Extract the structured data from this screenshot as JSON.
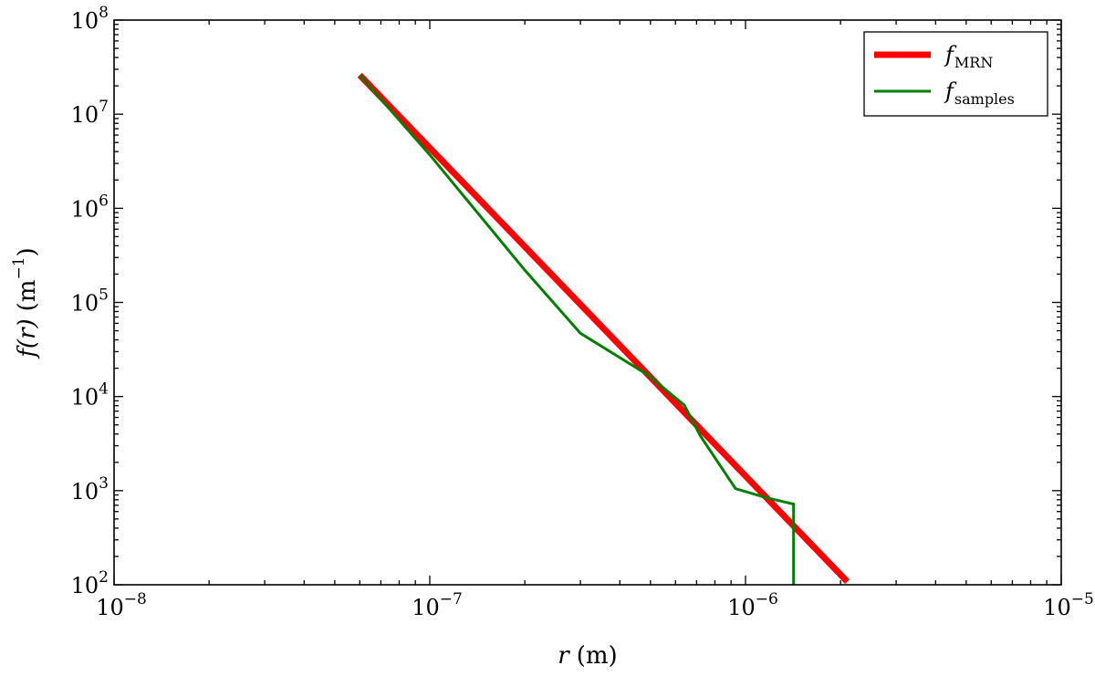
{
  "chart_data": {
    "type": "line",
    "xscale": "log",
    "yscale": "log",
    "xlim": [
      1e-08,
      1e-05
    ],
    "ylim": [
      100,
      100000000
    ],
    "xlabel": {
      "var": "r",
      "unit": "(m)"
    },
    "ylabel": {
      "var": "f(r)",
      "unit": "(m",
      "unit_exp": "−1",
      "unit_close": ")"
    },
    "x_tick_labels": [
      {
        "value": 1e-08,
        "base": "10",
        "exp": "−8"
      },
      {
        "value": 1e-07,
        "base": "10",
        "exp": "−7"
      },
      {
        "value": 1e-06,
        "base": "10",
        "exp": "−6"
      },
      {
        "value": 1e-05,
        "base": "10",
        "exp": "−5"
      }
    ],
    "y_tick_labels": [
      {
        "value": 100,
        "base": "10",
        "exp": "2"
      },
      {
        "value": 1000,
        "base": "10",
        "exp": "3"
      },
      {
        "value": 10000,
        "base": "10",
        "exp": "4"
      },
      {
        "value": 100000,
        "base": "10",
        "exp": "5"
      },
      {
        "value": 1000000,
        "base": "10",
        "exp": "6"
      },
      {
        "value": 10000000,
        "base": "10",
        "exp": "7"
      },
      {
        "value": 100000000,
        "base": "10",
        "exp": "8"
      }
    ],
    "grid": false,
    "legend_position": "top-right",
    "series": [
      {
        "name": "f",
        "name_sub": "MRN",
        "color": "#ff0000",
        "x": [
          6e-08,
          2.1e-06
        ],
        "y": [
          26000000,
          108
        ]
      },
      {
        "name": "f",
        "name_sub": "samples",
        "color": "#008000",
        "x": [
          6e-08,
          1e-07,
          2e-07,
          3e-07,
          4.9e-07,
          6.4e-07,
          7.2e-07,
          9.3e-07,
          1.15e-06,
          1.42e-06,
          1.42e-06
        ],
        "y": [
          26000000,
          3700000,
          220000,
          47000,
          17000,
          8100,
          3800,
          1050,
          850,
          720,
          100
        ]
      }
    ]
  }
}
